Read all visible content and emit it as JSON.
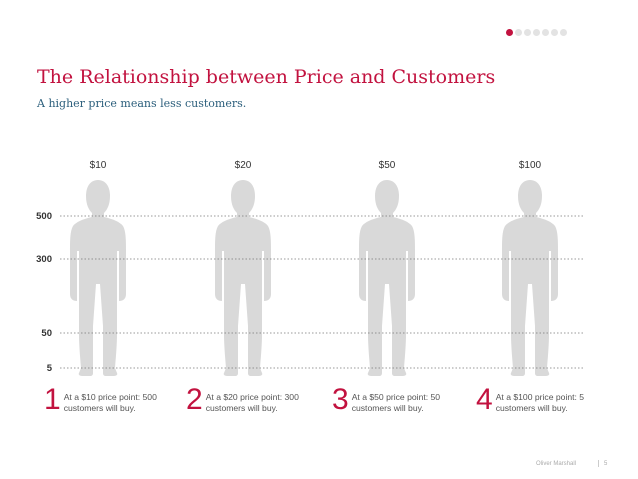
{
  "slide": {
    "title": "The Relationship between Price and Customers",
    "subtitle": "A higher price means less customers.",
    "footer_author": "Oliver Marshall",
    "page_number": "5",
    "pager_total": 7,
    "pager_active": 0
  },
  "colors": {
    "accent": "#c2123f",
    "silhouette": "#d9d9d9",
    "fill_top": "#c8103e",
    "fill_bottom": "#8a0c2d",
    "gridline": "#777777",
    "subtitle": "#2c5f7c"
  },
  "chart_data": {
    "type": "bar",
    "categories": [
      "$10",
      "$20",
      "$50",
      "$100"
    ],
    "values": [
      500,
      300,
      50,
      5
    ],
    "ytick_labels": [
      "500",
      "300",
      "50",
      "5"
    ],
    "ytick_values": [
      500,
      300,
      50,
      5
    ],
    "gridlines": "dotted at tick values",
    "legend": "none"
  },
  "captions": [
    {
      "num": "1",
      "text": "At a $10 price point: 500 customers will buy."
    },
    {
      "num": "2",
      "text": "At a $20 price point: 300 customers will buy."
    },
    {
      "num": "3",
      "text": "At a $50 price point: 50 customers will buy."
    },
    {
      "num": "4",
      "text": "At a $100 price point: 5 customers will buy."
    }
  ]
}
